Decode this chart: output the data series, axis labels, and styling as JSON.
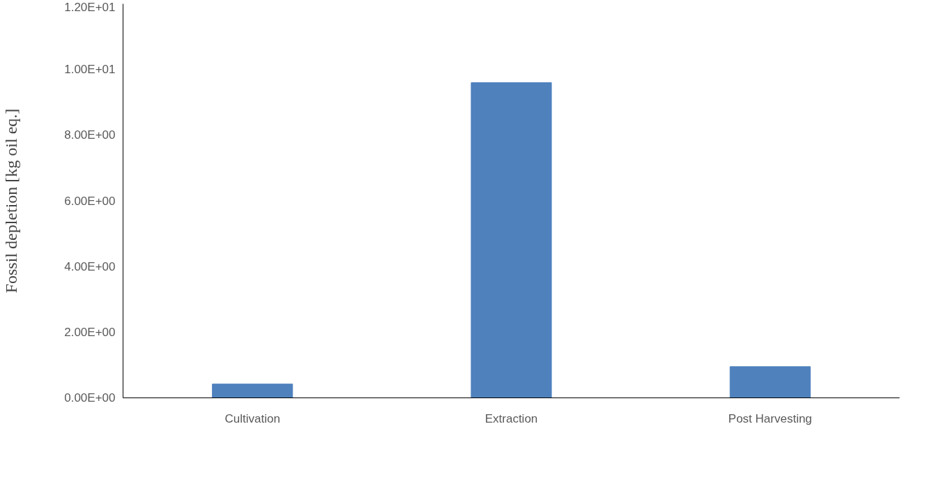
{
  "chart_data": {
    "type": "bar",
    "ylabel": "Fossil depletion [kg oil eq.]",
    "categories": [
      "Cultivation",
      "Extraction",
      "Post Harvesting"
    ],
    "values": [
      0.42,
      9.6,
      0.95
    ],
    "color": "#4f81bd",
    "ylim": [
      0,
      12
    ],
    "yticks": [
      {
        "value": 0,
        "label": "0.00E+00"
      },
      {
        "value": 2,
        "label": "2.00E+00"
      },
      {
        "value": 4,
        "label": "4.00E+00"
      },
      {
        "value": 6,
        "label": "6.00E+00"
      },
      {
        "value": 8,
        "label": "8.00E+00"
      },
      {
        "value": 10,
        "label": "1.00E+01"
      },
      {
        "value": 12,
        "label": "1.20E+01"
      }
    ],
    "grid": false
  }
}
